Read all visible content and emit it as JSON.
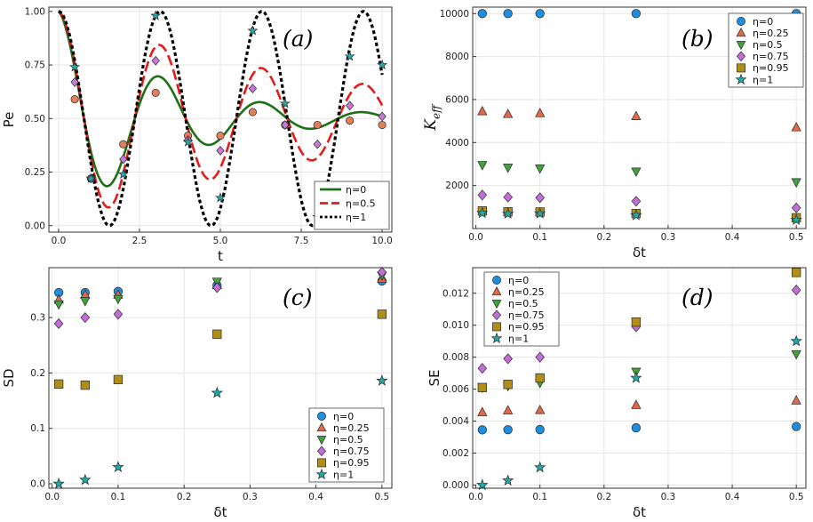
{
  "chart_data": [
    {
      "id": "a",
      "type": "line",
      "panel_label": "(a)",
      "xlabel": "t",
      "ylabel": "Pe",
      "xlim": [
        -0.3,
        10.3
      ],
      "ylim": [
        -0.03,
        1.02
      ],
      "xticks": [
        0,
        2.5,
        5,
        7.5,
        10
      ],
      "xtick_labels": [
        "0.0",
        "2.5",
        "5.0",
        "7.5",
        "10.0"
      ],
      "yticks": [
        0,
        0.25,
        0.5,
        0.75,
        1
      ],
      "ytick_labels": [
        "0.00",
        "0.25",
        "0.50",
        "0.75",
        "1.00"
      ],
      "grid": true,
      "legend_position": "bottom-right",
      "series": [
        {
          "name": "η=0",
          "color": "#1e7016",
          "dash": "solid",
          "model": {
            "gamma": 0.3,
            "omega": 2.0
          }
        },
        {
          "name": "η=0.5",
          "color": "#e41a1c",
          "dash": "dashed",
          "model": {
            "gamma": 0.12,
            "omega": 2.0
          }
        },
        {
          "name": "η=1",
          "color": "#000000",
          "dash": "dotted",
          "model": {
            "gamma": 0.0,
            "omega": 2.0
          }
        }
      ],
      "scatter": [
        {
          "marker": "circle-hex",
          "color": "#e0805a",
          "points": [
            [
              0.5,
              0.59
            ],
            [
              1.0,
              0.22
            ],
            [
              2.0,
              0.38
            ],
            [
              3.0,
              0.62
            ],
            [
              4.0,
              0.42
            ],
            [
              5.0,
              0.42
            ],
            [
              6.0,
              0.53
            ],
            [
              7.0,
              0.47
            ],
            [
              8.0,
              0.47
            ],
            [
              9.0,
              0.49
            ],
            [
              10.0,
              0.47
            ]
          ]
        },
        {
          "marker": "diamond",
          "color": "#c67ad6",
          "points": [
            [
              0.5,
              0.67
            ],
            [
              1.0,
              0.22
            ],
            [
              2.0,
              0.31
            ],
            [
              3.0,
              0.77
            ],
            [
              4.0,
              0.4
            ],
            [
              5.0,
              0.35
            ],
            [
              6.0,
              0.64
            ],
            [
              7.0,
              0.47
            ],
            [
              8.0,
              0.38
            ],
            [
              9.0,
              0.56
            ],
            [
              10.0,
              0.51
            ]
          ]
        },
        {
          "marker": "star",
          "color": "#27a9a9",
          "points": [
            [
              0.5,
              0.74
            ],
            [
              1.0,
              0.22
            ],
            [
              2.0,
              0.24
            ],
            [
              3.0,
              0.98
            ],
            [
              4.0,
              0.39
            ],
            [
              5.0,
              0.13
            ],
            [
              6.0,
              0.91
            ],
            [
              7.0,
              0.57
            ],
            [
              8.0,
              0.04
            ],
            [
              9.0,
              0.79
            ],
            [
              10.0,
              0.75
            ]
          ]
        }
      ]
    },
    {
      "id": "b",
      "type": "scatter",
      "panel_label": "(b)",
      "xlabel": "δt",
      "ylabel": "K_eff",
      "ylabel_main": "K",
      "ylabel_sub": "eff",
      "xlim": [
        -0.005,
        0.515
      ],
      "ylim": [
        0,
        10300
      ],
      "xticks": [
        0,
        0.1,
        0.2,
        0.3,
        0.4,
        0.5
      ],
      "xtick_labels": [
        "0.0",
        "0.1",
        "0.2",
        "0.3",
        "0.4",
        "0.5"
      ],
      "yticks": [
        2000,
        4000,
        6000,
        8000,
        10000
      ],
      "ytick_labels": [
        "2000",
        "4000",
        "6000",
        "8000",
        "10000"
      ],
      "grid": true,
      "legend_position": "top-right",
      "x": [
        0.01,
        0.05,
        0.1,
        0.25,
        0.5
      ],
      "series": [
        {
          "name": "η=0",
          "marker": "circle",
          "color": "#1e8fe0",
          "values": [
            10000,
            10000,
            10000,
            10000,
            10000
          ]
        },
        {
          "name": "η=0.25",
          "marker": "triangle-up",
          "color": "#e06a48",
          "values": [
            5450,
            5320,
            5360,
            5220,
            4700
          ]
        },
        {
          "name": "η=0.5",
          "marker": "triangle-down",
          "color": "#3fa33a",
          "values": [
            2960,
            2840,
            2800,
            2660,
            2160
          ]
        },
        {
          "name": "η=0.75",
          "marker": "diamond",
          "color": "#c36ed8",
          "values": [
            1560,
            1460,
            1430,
            1270,
            960
          ]
        },
        {
          "name": "η=0.95",
          "marker": "square",
          "color": "#b08e18",
          "values": [
            820,
            780,
            770,
            700,
            500
          ]
        },
        {
          "name": "η=1",
          "marker": "star",
          "color": "#21a7a7",
          "values": [
            720,
            690,
            700,
            620,
            400
          ]
        }
      ]
    },
    {
      "id": "c",
      "type": "scatter",
      "panel_label": "(c)",
      "xlabel": "δt",
      "ylabel": "SD",
      "xlim": [
        -0.005,
        0.515
      ],
      "ylim": [
        -0.008,
        0.39
      ],
      "xticks": [
        0,
        0.1,
        0.2,
        0.3,
        0.4,
        0.5
      ],
      "xtick_labels": [
        "0.0",
        "0.1",
        "0.2",
        "0.3",
        "0.4",
        "0.5"
      ],
      "yticks": [
        0,
        0.1,
        0.2,
        0.3
      ],
      "ytick_labels": [
        "0.0",
        "0.1",
        "0.2",
        "0.3"
      ],
      "grid": true,
      "legend_position": "bottom-right",
      "x": [
        0.01,
        0.05,
        0.1,
        0.25,
        0.5
      ],
      "series": [
        {
          "name": "η=0",
          "marker": "circle",
          "color": "#1e8fe0",
          "values": [
            0.345,
            0.345,
            0.347,
            0.358,
            0.366
          ]
        },
        {
          "name": "η=0.25",
          "marker": "triangle-up",
          "color": "#e06a48",
          "values": [
            0.332,
            0.341,
            0.341,
            0.358,
            0.37
          ]
        },
        {
          "name": "η=0.5",
          "marker": "triangle-down",
          "color": "#3fa33a",
          "values": [
            0.324,
            0.33,
            0.334,
            0.365,
            0.376
          ]
        },
        {
          "name": "η=0.75",
          "marker": "diamond",
          "color": "#c36ed8",
          "values": [
            0.289,
            0.3,
            0.306,
            0.354,
            0.382
          ]
        },
        {
          "name": "η=0.95",
          "marker": "square",
          "color": "#b08e18",
          "values": [
            0.18,
            0.178,
            0.188,
            0.27,
            0.306
          ]
        },
        {
          "name": "η=1",
          "marker": "star",
          "color": "#21a7a7",
          "values": [
            0.0,
            0.007,
            0.03,
            0.164,
            0.186
          ]
        }
      ]
    },
    {
      "id": "d",
      "type": "scatter",
      "panel_label": "(d)",
      "xlabel": "δt",
      "ylabel": "SE",
      "xlim": [
        -0.005,
        0.515
      ],
      "ylim": [
        -0.0002,
        0.0136
      ],
      "xticks": [
        0,
        0.1,
        0.2,
        0.3,
        0.4,
        0.5
      ],
      "xtick_labels": [
        "0.0",
        "0.1",
        "0.2",
        "0.3",
        "0.4",
        "0.5"
      ],
      "yticks": [
        0,
        0.002,
        0.004,
        0.006,
        0.008,
        0.01,
        0.012
      ],
      "ytick_labels": [
        "0.000",
        "0.002",
        "0.004",
        "0.006",
        "0.008",
        "0.010",
        "0.012"
      ],
      "grid": true,
      "legend_position": "top-left",
      "x": [
        0.01,
        0.05,
        0.1,
        0.25,
        0.5
      ],
      "series": [
        {
          "name": "η=0",
          "marker": "circle",
          "color": "#1e8fe0",
          "values": [
            0.00345,
            0.00346,
            0.00347,
            0.00358,
            0.00366
          ]
        },
        {
          "name": "η=0.25",
          "marker": "triangle-up",
          "color": "#e06a48",
          "values": [
            0.00455,
            0.00466,
            0.00468,
            0.005,
            0.00528
          ]
        },
        {
          "name": "η=0.5",
          "marker": "triangle-down",
          "color": "#3fa33a",
          "values": [
            0.0061,
            0.0062,
            0.0064,
            0.0071,
            0.0082
          ]
        },
        {
          "name": "η=0.75",
          "marker": "diamond",
          "color": "#c36ed8",
          "values": [
            0.0073,
            0.0079,
            0.008,
            0.0099,
            0.0122
          ]
        },
        {
          "name": "η=0.95",
          "marker": "square",
          "color": "#b08e18",
          "values": [
            0.0061,
            0.0063,
            0.0067,
            0.0102,
            0.0133
          ]
        },
        {
          "name": "η=1",
          "marker": "star",
          "color": "#21a7a7",
          "values": [
            0.0,
            0.00028,
            0.0011,
            0.0067,
            0.009
          ]
        }
      ]
    }
  ]
}
